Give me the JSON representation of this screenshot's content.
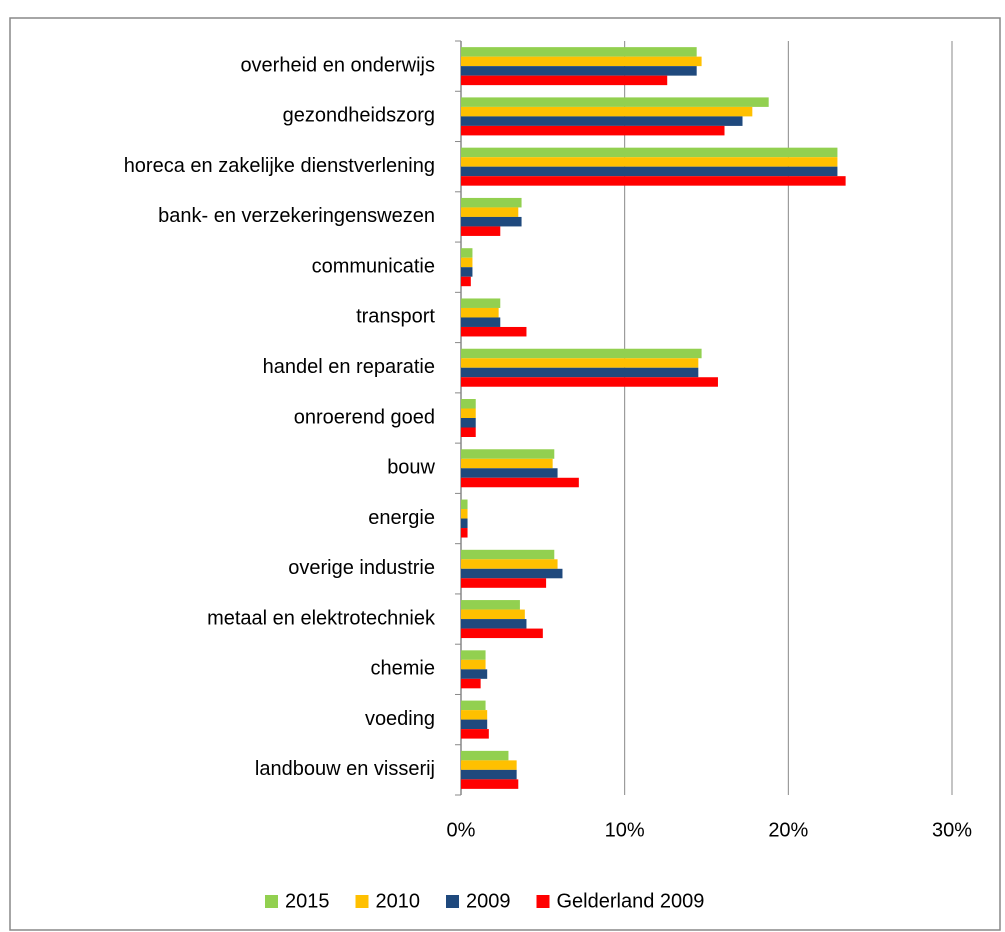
{
  "chart_data": {
    "type": "hbar",
    "categories": [
      "overheid en onderwijs",
      "gezondheidszorg",
      "horeca en zakelijke dienstverlening",
      "bank- en verzekeringenswezen",
      "communicatie",
      "transport",
      "handel en reparatie",
      "onroerend goed",
      "bouw",
      "energie",
      "overige industrie",
      "metaal en elektrotechniek",
      "chemie",
      "voeding",
      "landbouw en visserij"
    ],
    "series": [
      {
        "name": "2015",
        "color": "#92d050",
        "values": [
          14.4,
          18.8,
          23.0,
          3.7,
          0.7,
          2.4,
          14.7,
          0.9,
          5.7,
          0.4,
          5.7,
          3.6,
          1.5,
          1.5,
          2.9
        ]
      },
      {
        "name": "2010",
        "color": "#ffc000",
        "values": [
          14.7,
          17.8,
          23.0,
          3.5,
          0.7,
          2.3,
          14.5,
          0.9,
          5.6,
          0.4,
          5.9,
          3.9,
          1.5,
          1.6,
          3.4
        ]
      },
      {
        "name": "2009",
        "color": "#1f497d",
        "values": [
          14.4,
          17.2,
          23.0,
          3.7,
          0.7,
          2.4,
          14.5,
          0.9,
          5.9,
          0.4,
          6.2,
          4.0,
          1.6,
          1.6,
          3.4
        ]
      },
      {
        "name": "Gelderland 2009",
        "color": "#ff0000",
        "values": [
          12.6,
          16.1,
          23.5,
          2.4,
          0.6,
          4.0,
          15.7,
          0.9,
          7.2,
          0.4,
          5.2,
          5.0,
          1.2,
          1.7,
          3.5
        ]
      }
    ],
    "xlim": [
      0,
      30
    ],
    "xticks": [
      {
        "value": 0,
        "label": "0%"
      },
      {
        "value": 10,
        "label": "10%"
      },
      {
        "value": 20,
        "label": "20%"
      },
      {
        "value": 30,
        "label": "30%"
      }
    ],
    "grid": true,
    "legend": "bottom"
  }
}
